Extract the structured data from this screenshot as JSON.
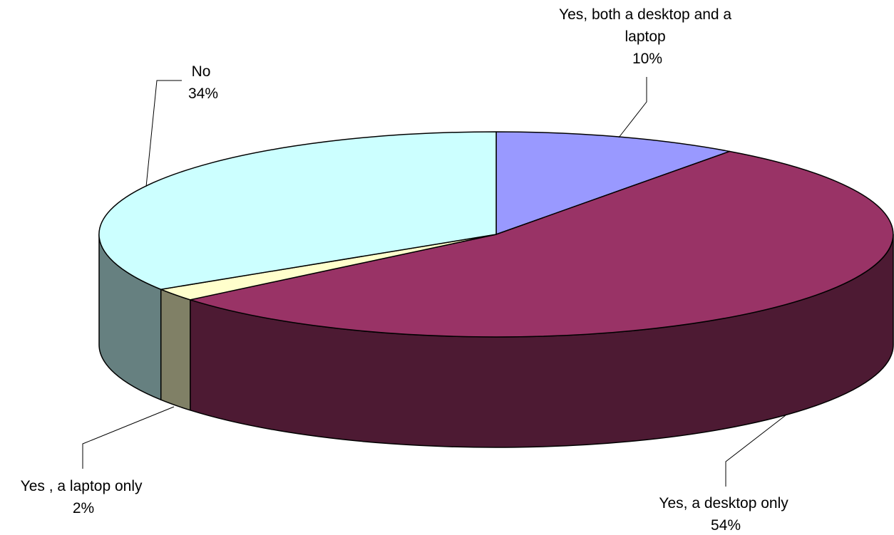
{
  "chart_data": {
    "type": "pie",
    "title": "",
    "slices": [
      {
        "label": "Yes, both a desktop and a laptop",
        "value": 10,
        "percent_text": "10%",
        "color": "#9999FF",
        "side_color": "#5C5C99"
      },
      {
        "label": "Yes, a desktop only",
        "value": 54,
        "percent_text": "54%",
        "color": "#993366",
        "side_color": "#4D1A33"
      },
      {
        "label": "Yes , a laptop only",
        "value": 2,
        "percent_text": "2%",
        "color": "#FFFFCC",
        "side_color": "#808066"
      },
      {
        "label": "No",
        "value": 34,
        "percent_text": "34%",
        "color": "#CCFFFF",
        "side_color": "#668080"
      }
    ],
    "start_angle": "12 o'clock",
    "direction": "clockwise",
    "style": "3d"
  }
}
